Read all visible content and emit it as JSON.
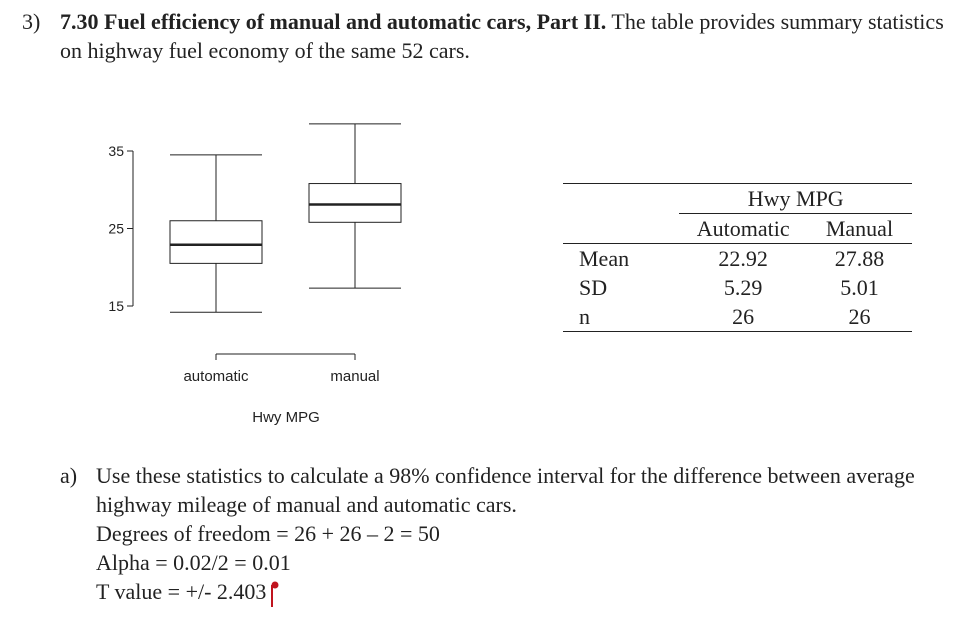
{
  "problem": {
    "number": "3)",
    "title": "7.30 Fuel efficiency of manual and automatic cars, Part II.",
    "intro": "The table provides summary statistics on highway fuel economy of the same 52 cars."
  },
  "chart_data": {
    "type": "box",
    "categories": [
      "automatic",
      "manual"
    ],
    "xlabel": "Hwy MPG",
    "ylabel": "",
    "yticks": [
      15,
      25,
      35
    ],
    "ylim": [
      13,
      37
    ],
    "boxes": [
      {
        "name": "automatic",
        "whisker_low": 14.2,
        "q1": 20.5,
        "median": 22.9,
        "q3": 26.0,
        "whisker_high": 34.5
      },
      {
        "name": "manual",
        "whisker_low": 17.3,
        "q1": 25.8,
        "median": 28.1,
        "q3": 30.8,
        "whisker_high": 38.5
      }
    ]
  },
  "stats_table": {
    "header": "Hwy MPG",
    "col_auto": "Automatic",
    "col_manual": "Manual",
    "rows": [
      {
        "label": "Mean",
        "auto": "22.92",
        "manual": "27.88"
      },
      {
        "label": "SD",
        "auto": "5.29",
        "manual": "5.01"
      },
      {
        "label": "n",
        "auto": "26",
        "manual": "26"
      }
    ]
  },
  "part_a": {
    "letter": "a)",
    "question": "Use these statistics to calculate a 98% confidence interval for the difference between average highway mileage of manual and automatic cars.",
    "line_df": "Degrees of freedom = 26 + 26 – 2 = 50",
    "line_alpha": "Alpha = 0.02/2 = 0.01",
    "line_t": "T value = +/- 2.403"
  },
  "colors": {
    "cursor": "#c0141e",
    "text": "#222222"
  }
}
